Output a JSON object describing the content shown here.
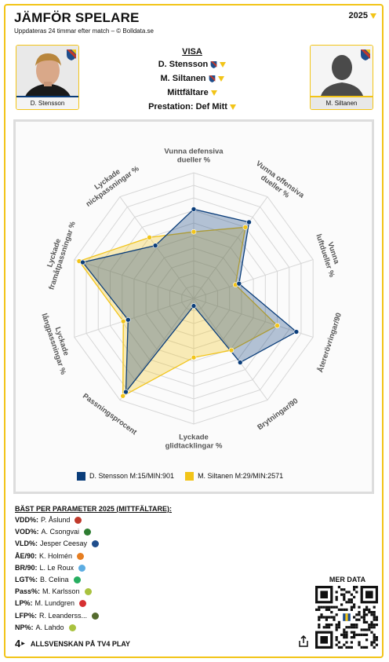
{
  "header": {
    "title": "JÄMFÖR SPELARE",
    "subtitle": "Uppdateras 24 timmar efter match – © Bolldata.se",
    "season": "2025"
  },
  "players": [
    {
      "name": "D. Stensson",
      "color": "#0a3d7a"
    },
    {
      "name": "M. Siltanen",
      "color": "#f2c418"
    }
  ],
  "visa": {
    "heading": "VISA",
    "player1": "D. Stensson",
    "player2": "M. Siltanen",
    "position": "Mittfältare",
    "prestation": "Prestation: Def Mitt"
  },
  "chart_data": {
    "type": "radar",
    "axes": [
      "Vunna defensiva dueller %",
      "Vunna offensiva dueller %",
      "Vunna luftdueller %",
      "Återerövringar/90",
      "Brytningar/90",
      "Lyckade glidtacklingar %",
      "Passningsprocent",
      "Lyckade långpassningar %",
      "Lyckade framåtpassningar %",
      "Lyckade nickpassningar %"
    ],
    "range": [
      0,
      100
    ],
    "grid_levels": 10,
    "series": [
      {
        "name": "D. Stensson M:15/MIN:901",
        "color": "#0a3d7a",
        "values": [
          71,
          75,
          38,
          86,
          63,
          6,
          92,
          55,
          93,
          52
        ]
      },
      {
        "name": "M. Siltanen M:29/MIN:2571",
        "color": "#f2c418",
        "values": [
          53,
          70,
          35,
          70,
          51,
          47,
          96,
          59,
          96,
          60
        ]
      }
    ]
  },
  "best": {
    "title": "BÄST PER PARAMETER 2025 (MITTFÄLTARE):",
    "rows": [
      {
        "key": "VDD%:",
        "player": "P. Åslund",
        "club_color": "#c0392b"
      },
      {
        "key": "VOD%:",
        "player": "A. Csongvai",
        "club_color": "#2e7d32"
      },
      {
        "key": "VLD%:",
        "player": "Jesper Ceesay",
        "club_color": "#1f4e8c"
      },
      {
        "key": "ÅE/90:",
        "player": "K. Holmén",
        "club_color": "#e67e22"
      },
      {
        "key": "BR/90:",
        "player": "L. Le Roux",
        "club_color": "#5dade2"
      },
      {
        "key": "LGT%:",
        "player": "B. Celina",
        "club_color": "#27ae60"
      },
      {
        "key": "Pass%:",
        "player": "M. Karlsson",
        "club_color": "#a9c23f"
      },
      {
        "key": "LP%:",
        "player": "M. Lundgren",
        "club_color": "#d63031"
      },
      {
        "key": "LFP%:",
        "player": "R. Leanderss...",
        "club_color": "#556b2f"
      },
      {
        "key": "NP%:",
        "player": "A. Lahdo",
        "club_color": "#a9c23f"
      }
    ]
  },
  "mer_data": "MER DATA",
  "footer": {
    "logo": "4",
    "text": "ALLSVENSKAN PÅ TV4 PLAY"
  },
  "icons": {
    "share": "share-icon",
    "season_dropdown": "chevron-down-icon",
    "qr": "qr-code"
  }
}
